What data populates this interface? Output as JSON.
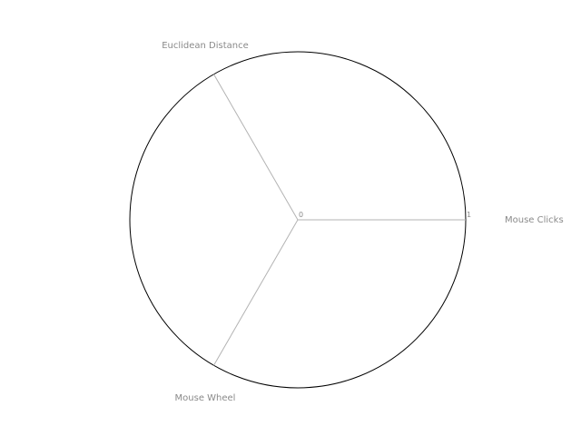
{
  "chart_data": {
    "type": "radar",
    "axes": [
      "Mouse Clicks",
      "Euclidean Distance",
      "Mouse Wheel"
    ],
    "series": [],
    "radial_range": [
      0,
      1
    ],
    "radial_ticks": [
      "0",
      "1"
    ],
    "grid": true,
    "colors": {
      "axis_label": "#8a8a8a",
      "spoke": "#b3b3b3",
      "outer_ring": "#000000"
    }
  }
}
